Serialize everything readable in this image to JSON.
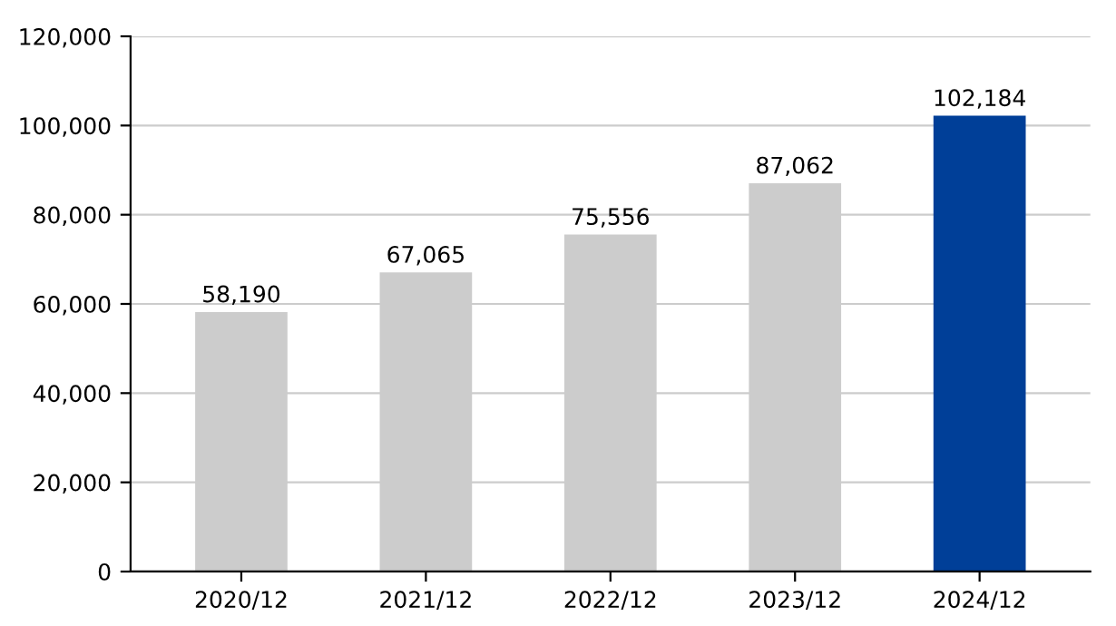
{
  "chart_data": {
    "type": "bar",
    "categories": [
      "2020/12",
      "2021/12",
      "2022/12",
      "2023/12",
      "2024/12"
    ],
    "values": [
      58190,
      67065,
      75556,
      87062,
      102184
    ],
    "colors": [
      "#cccccc",
      "#cccccc",
      "#cccccc",
      "#cccccc",
      "#003f98"
    ],
    "value_labels": [
      "58,190",
      "67,065",
      "75,556",
      "87,062",
      "102,184"
    ],
    "ylim": [
      0,
      120000
    ],
    "yticks": [
      {
        "value": 0,
        "label": "0"
      },
      {
        "value": 20000,
        "label": "20,000"
      },
      {
        "value": 40000,
        "label": "40,000"
      },
      {
        "value": 60000,
        "label": "60,000"
      },
      {
        "value": 80000,
        "label": "80,000"
      },
      {
        "value": 100000,
        "label": "100,000"
      },
      {
        "value": 120000,
        "label": "120,000"
      }
    ],
    "grid": "y",
    "legend": false
  }
}
